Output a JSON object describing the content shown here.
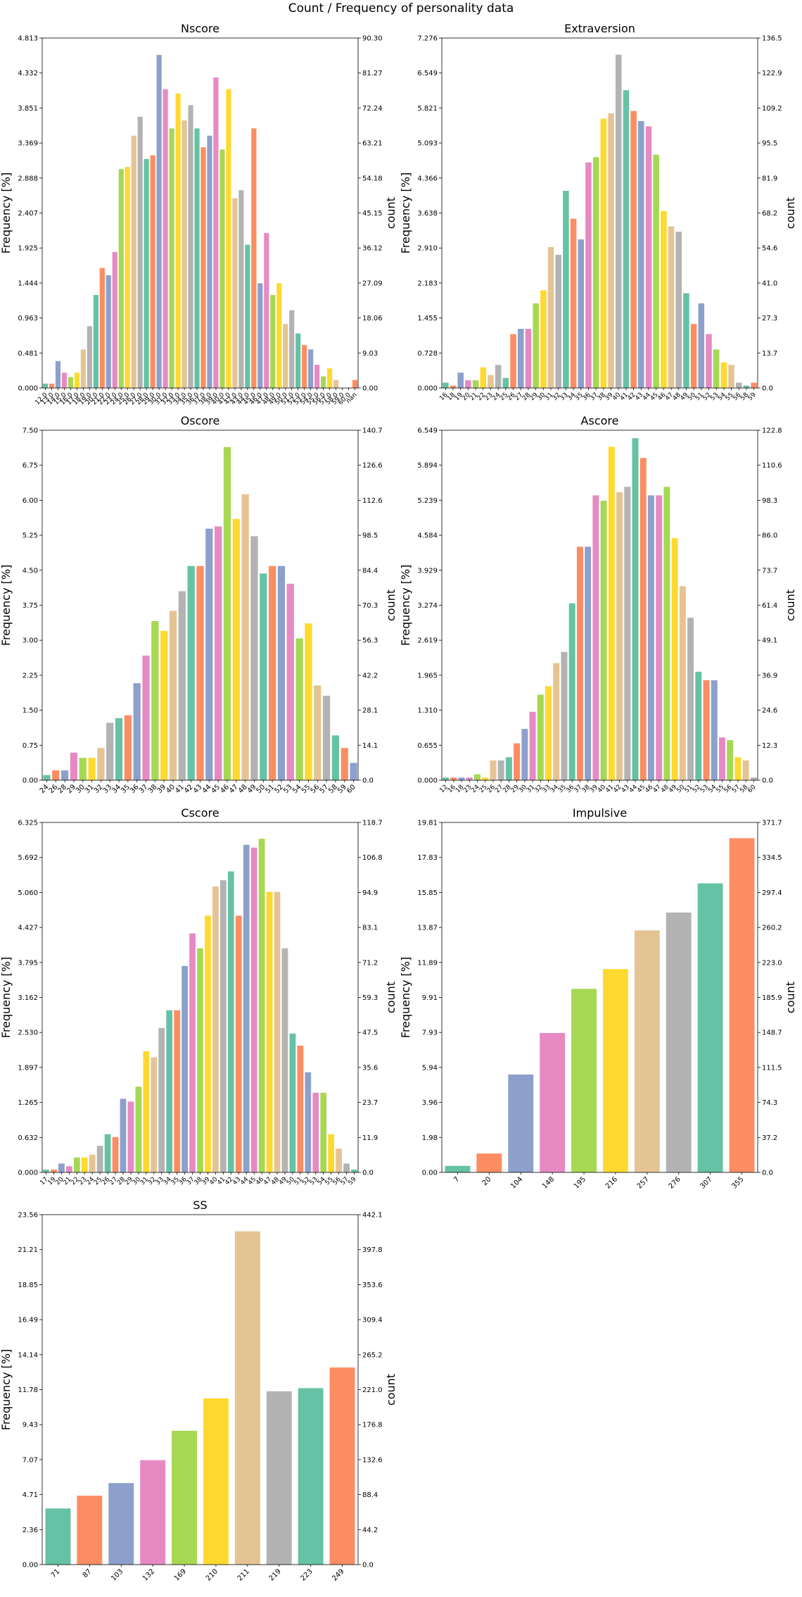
{
  "figure": {
    "title": "Count / Frequency of personality data"
  },
  "chart_data": [
    {
      "type": "bar",
      "title": "Nscore",
      "ylabel": "Frequency [%]",
      "y2label": "count",
      "ylim": [
        0,
        4.813
      ],
      "y2lim": [
        0,
        90.3
      ],
      "yticks": [
        "0.000",
        "0.481",
        "0.963",
        "1.444",
        "1.925",
        "2.407",
        "2.888",
        "3.369",
        "3.851",
        "4.332",
        "4.813"
      ],
      "y2ticks": [
        "0.00",
        "9.03",
        "18.06",
        "27.09",
        "36.12",
        "45.15",
        "54.18",
        "63.21",
        "72.24",
        "81.27",
        "90.30"
      ],
      "categories": [
        "12.0",
        "13.0",
        "14.0",
        "15.0",
        "16.0",
        "17.0",
        "18.0",
        "19.0",
        "20.0",
        "21.0",
        "22.0",
        "23.0",
        "24.0",
        "25.0",
        "26.0",
        "27.0",
        "28.0",
        "29.0",
        "30.0",
        "31.0",
        "32.0",
        "33.0",
        "34.0",
        "35.0",
        "36.0",
        "37.0",
        "38.0",
        "39.0",
        "40.0",
        "41.0",
        "42.0",
        "43.0",
        "44.0",
        "45.0",
        "46.0",
        "47.0",
        "48.0",
        "49.0",
        "50.0",
        "51.0",
        "52.0",
        "53.0",
        "54.0",
        "55.0",
        "56.0",
        "57.0",
        "58.0",
        "59.0",
        "60.0",
        "nan"
      ],
      "values": [
        0.06,
        0.06,
        0.37,
        0.21,
        0.15,
        0.21,
        0.53,
        0.85,
        1.28,
        1.65,
        1.55,
        1.87,
        3.01,
        3.04,
        3.47,
        3.73,
        3.15,
        3.2,
        4.58,
        4.11,
        3.57,
        4.05,
        3.68,
        3.89,
        3.57,
        3.31,
        3.47,
        4.27,
        3.28,
        4.11,
        2.61,
        2.72,
        1.97,
        3.57,
        1.44,
        2.13,
        1.28,
        1.44,
        0.88,
        1.07,
        0.75,
        0.59,
        0.53,
        0.32,
        0.16,
        0.27,
        0.11,
        0.0,
        0.0,
        0.11
      ]
    },
    {
      "type": "bar",
      "title": "Extraversion",
      "ylabel": "Frequency [%]",
      "y2label": "count",
      "ylim": [
        0,
        7.276
      ],
      "y2lim": [
        0,
        136.5
      ],
      "yticks": [
        "0.000",
        "0.728",
        "1.455",
        "2.183",
        "2.910",
        "3.638",
        "4.366",
        "5.093",
        "5.821",
        "6.549",
        "7.276"
      ],
      "y2ticks": [
        "0.0",
        "13.7",
        "27.3",
        "41.0",
        "54.6",
        "68.2",
        "81.9",
        "95.5",
        "109.2",
        "122.9",
        "136.5"
      ],
      "categories": [
        "16",
        "18",
        "19",
        "20",
        "21",
        "22",
        "23",
        "24",
        "25",
        "26",
        "27",
        "28",
        "29",
        "30",
        "31",
        "32",
        "33",
        "34",
        "35",
        "36",
        "37",
        "38",
        "39",
        "40",
        "41",
        "42",
        "43",
        "44",
        "45",
        "46",
        "47",
        "48",
        "49",
        "50",
        "51",
        "52",
        "53",
        "54",
        "55",
        "56",
        "58",
        "59"
      ],
      "values": [
        0.11,
        0.05,
        0.32,
        0.16,
        0.16,
        0.43,
        0.27,
        0.48,
        0.21,
        1.12,
        1.23,
        1.23,
        1.76,
        2.03,
        2.93,
        2.77,
        4.1,
        3.52,
        3.09,
        4.69,
        4.8,
        5.6,
        5.71,
        6.93,
        6.19,
        5.76,
        5.55,
        5.44,
        4.85,
        3.68,
        3.36,
        3.25,
        1.97,
        1.33,
        1.76,
        1.12,
        0.8,
        0.53,
        0.48,
        0.11,
        0.05,
        0.11
      ]
    },
    {
      "type": "bar",
      "title": "Oscore",
      "ylabel": "Frequency [%]",
      "y2label": "count",
      "ylim": [
        0,
        7.5
      ],
      "y2lim": [
        0,
        140.7
      ],
      "yticks": [
        "0.00",
        "0.75",
        "1.50",
        "2.25",
        "3.00",
        "3.75",
        "4.50",
        "5.25",
        "6.00",
        "6.75",
        "7.50"
      ],
      "y2ticks": [
        "0.0",
        "14.1",
        "28.1",
        "42.2",
        "56.3",
        "70.3",
        "84.4",
        "98.5",
        "112.6",
        "126.6",
        "140.7"
      ],
      "categories": [
        "24",
        "26",
        "28",
        "29",
        "30",
        "31",
        "32",
        "33",
        "34",
        "35",
        "36",
        "37",
        "38",
        "39",
        "40",
        "41",
        "42",
        "43",
        "44",
        "45",
        "46",
        "47",
        "48",
        "49",
        "50",
        "51",
        "52",
        "53",
        "54",
        "55",
        "56",
        "57",
        "58",
        "59",
        "60"
      ],
      "values": [
        0.11,
        0.21,
        0.21,
        0.59,
        0.48,
        0.48,
        0.69,
        1.23,
        1.33,
        1.39,
        2.08,
        2.67,
        3.41,
        3.2,
        3.63,
        4.05,
        4.59,
        4.59,
        5.39,
        5.44,
        7.14,
        5.6,
        6.13,
        5.23,
        4.43,
        4.59,
        4.59,
        4.21,
        3.04,
        3.36,
        2.03,
        1.81,
        0.96,
        0.69,
        0.37
      ]
    },
    {
      "type": "bar",
      "title": "Ascore",
      "ylabel": "Frequency [%]",
      "y2label": "count",
      "ylim": [
        0,
        6.549
      ],
      "y2lim": [
        0,
        122.8
      ],
      "yticks": [
        "0.000",
        "0.655",
        "1.310",
        "1.965",
        "2.619",
        "3.274",
        "3.929",
        "4.584",
        "5.239",
        "5.894",
        "6.549"
      ],
      "y2ticks": [
        "0.0",
        "12.3",
        "24.6",
        "36.9",
        "49.1",
        "61.4",
        "73.7",
        "86.0",
        "98.3",
        "110.6",
        "122.8"
      ],
      "categories": [
        "12",
        "16",
        "18",
        "23",
        "24",
        "25",
        "26",
        "27",
        "28",
        "29",
        "30",
        "31",
        "32",
        "33",
        "34",
        "35",
        "36",
        "37",
        "38",
        "39",
        "40",
        "41",
        "42",
        "43",
        "44",
        "45",
        "46",
        "47",
        "48",
        "49",
        "50",
        "51",
        "52",
        "53",
        "54",
        "55",
        "56",
        "57",
        "58",
        "60"
      ],
      "values": [
        0.05,
        0.05,
        0.05,
        0.05,
        0.11,
        0.05,
        0.37,
        0.37,
        0.43,
        0.69,
        0.96,
        1.28,
        1.6,
        1.76,
        2.19,
        2.4,
        3.31,
        4.37,
        4.37,
        5.33,
        5.23,
        6.24,
        5.39,
        5.49,
        6.4,
        6.03,
        5.33,
        5.33,
        5.49,
        4.53,
        3.63,
        3.04,
        2.03,
        1.87,
        1.87,
        0.8,
        0.75,
        0.43,
        0.37,
        0.05
      ]
    },
    {
      "type": "bar",
      "title": "Cscore",
      "ylabel": "Frequency [%]",
      "y2label": "count",
      "ylim": [
        0,
        6.325
      ],
      "y2lim": [
        0,
        118.7
      ],
      "yticks": [
        "0.000",
        "0.632",
        "1.265",
        "1.897",
        "2.530",
        "3.162",
        "3.795",
        "4.427",
        "5.060",
        "5.692",
        "6.325"
      ],
      "y2ticks": [
        "0.0",
        "11.9",
        "23.7",
        "35.6",
        "47.5",
        "59.3",
        "71.2",
        "83.1",
        "94.9",
        "106.8",
        "118.7"
      ],
      "categories": [
        "17",
        "19",
        "20",
        "21",
        "22",
        "23",
        "24",
        "25",
        "26",
        "27",
        "28",
        "29",
        "30",
        "31",
        "32",
        "33",
        "34",
        "35",
        "36",
        "37",
        "38",
        "39",
        "40",
        "41",
        "42",
        "43",
        "44",
        "45",
        "46",
        "47",
        "48",
        "49",
        "50",
        "51",
        "52",
        "53",
        "54",
        "55",
        "56",
        "57",
        "59"
      ],
      "values": [
        0.05,
        0.05,
        0.16,
        0.11,
        0.27,
        0.27,
        0.32,
        0.48,
        0.69,
        0.64,
        1.33,
        1.28,
        1.55,
        2.19,
        2.08,
        2.61,
        2.93,
        2.93,
        3.73,
        4.32,
        4.05,
        4.64,
        5.17,
        5.28,
        5.44,
        4.64,
        5.92,
        5.87,
        6.03,
        5.07,
        5.07,
        4.05,
        2.51,
        2.29,
        1.81,
        1.44,
        1.44,
        0.69,
        0.43,
        0.16,
        0.05
      ]
    },
    {
      "type": "bar",
      "title": "Impulsive",
      "ylabel": "Frequency [%]",
      "y2label": "count",
      "ylim": [
        0,
        19.81
      ],
      "y2lim": [
        0,
        371.7
      ],
      "yticks": [
        "0.00",
        "1.98",
        "3.96",
        "5.94",
        "7.93",
        "9.91",
        "11.89",
        "13.87",
        "15.85",
        "17.83",
        "19.81"
      ],
      "y2ticks": [
        "0.0",
        "37.2",
        "74.3",
        "111.5",
        "148.7",
        "185.9",
        "223.0",
        "260.2",
        "297.4",
        "334.5",
        "371.7"
      ],
      "categories": [
        "7",
        "20",
        "104",
        "148",
        "195",
        "216",
        "257",
        "276",
        "307",
        "355"
      ],
      "values": [
        0.37,
        1.07,
        5.54,
        7.89,
        10.39,
        11.51,
        13.7,
        14.71,
        16.36,
        18.92
      ]
    },
    {
      "type": "bar",
      "title": "SS",
      "ylabel": "Frequency [%]",
      "y2label": "count",
      "ylim": [
        0,
        23.56
      ],
      "y2lim": [
        0,
        442.1
      ],
      "yticks": [
        "0.00",
        "2.36",
        "4.71",
        "7.07",
        "9.43",
        "11.78",
        "14.14",
        "16.49",
        "18.85",
        "21.21",
        "23.56"
      ],
      "y2ticks": [
        "0.0",
        "44.2",
        "88.4",
        "132.6",
        "176.8",
        "221.0",
        "265.2",
        "309.4",
        "353.6",
        "397.8",
        "442.1"
      ],
      "categories": [
        "71",
        "87",
        "103",
        "132",
        "169",
        "210",
        "211",
        "219",
        "223",
        "249"
      ],
      "values": [
        3.78,
        4.64,
        5.49,
        7.03,
        9.01,
        11.19,
        22.44,
        11.67,
        11.88,
        13.27
      ]
    }
  ],
  "colors": {
    "palette": [
      "#66c2a5",
      "#fc8d62",
      "#8da0cb",
      "#e78ac3",
      "#a6d854",
      "#ffd92f",
      "#e5c494",
      "#b3b3b3"
    ],
    "ss_palette": [
      "#66c2a5",
      "#fc8d62",
      "#8da0cb",
      "#e78ac3",
      "#a6d854",
      "#ffd92f",
      "#e5c494",
      "#b3b3b3",
      "#66c2a5",
      "#fc8d62"
    ],
    "axis": "#000000",
    "background": "#ffffff"
  }
}
